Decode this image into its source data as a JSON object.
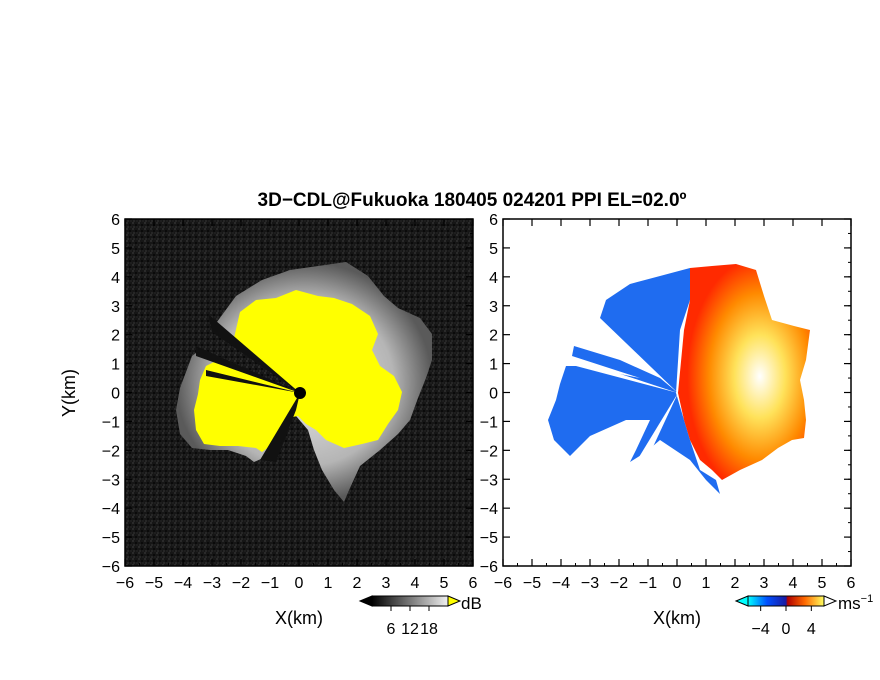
{
  "title": "3D−CDL@Fukuoka 180405 024201 PPI EL=02.0º",
  "chart_data": [
    {
      "type": "heatmap",
      "panel": "reflectivity",
      "xlabel": "X(km)",
      "ylabel": "Y(km)",
      "xlim": [
        -6,
        6
      ],
      "ylim": [
        -6,
        6
      ],
      "xticks": [
        "−6",
        "−5",
        "−4",
        "−3",
        "−2",
        "−1",
        "0",
        "1",
        "2",
        "3",
        "4",
        "5",
        "6"
      ],
      "yticks": [
        "−6",
        "−5",
        "−4",
        "−3",
        "−2",
        "−1",
        "0",
        "1",
        "2",
        "3",
        "4",
        "5",
        "6"
      ],
      "colorbar": {
        "unit": "dB",
        "ticks": [
          "6",
          "12",
          "18"
        ],
        "range": [
          0,
          24
        ]
      },
      "colors": {
        "background": "#141414",
        "echo": "#cfcfcf",
        "saturated": "#ffff00"
      }
    },
    {
      "type": "heatmap",
      "panel": "radial-velocity",
      "xlabel": "X(km)",
      "ylabel": "",
      "xlim": [
        -6,
        6
      ],
      "ylim": [
        -6,
        6
      ],
      "xticks": [
        "−6",
        "−5",
        "−4",
        "−3",
        "−2",
        "−1",
        "0",
        "1",
        "2",
        "3",
        "4",
        "5",
        "6"
      ],
      "yticks": [
        "−6",
        "−5",
        "−4",
        "−3",
        "−2",
        "−1",
        "0",
        "1",
        "2",
        "3",
        "4",
        "5",
        "6"
      ],
      "colorbar": {
        "unit": "ms",
        "unit_exp": "−1",
        "ticks": [
          "−4",
          "0",
          "4"
        ],
        "range": [
          -6,
          6
        ]
      },
      "colors": {
        "approach": "#1f6cf0",
        "recede": "#ff4a00",
        "high": "#ffef80"
      }
    }
  ]
}
